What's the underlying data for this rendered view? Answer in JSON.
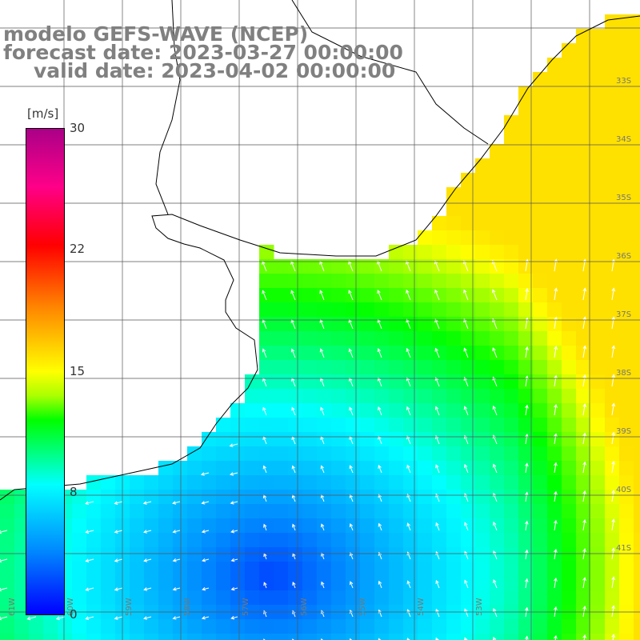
{
  "title": {
    "line1": "modelo GEFS-WAVE (NCEP)",
    "line2": "forecast date: 2023-03-27 00:00:00",
    "line3": "valid date: 2023-04-02 00:00:00"
  },
  "colorbar": {
    "unit": "[m/s]",
    "ticks": [
      "30",
      "22",
      "15",
      "8",
      "0"
    ],
    "range": [
      0,
      30
    ],
    "colors": [
      "#0000ff",
      "#0088ff",
      "#00ffff",
      "#00ff00",
      "#ffff00",
      "#ff8800",
      "#ff0000",
      "#aa0088"
    ]
  },
  "map": {
    "lat_labels": [
      "33S",
      "34S",
      "35S",
      "36S",
      "37S",
      "38S",
      "39S",
      "40S",
      "41S"
    ],
    "lon_labels": [
      "61W",
      "60W",
      "59W",
      "58W",
      "57W",
      "56W",
      "55W",
      "54W",
      "53W"
    ],
    "field": "wind speed with direction arrows",
    "grid": true
  }
}
